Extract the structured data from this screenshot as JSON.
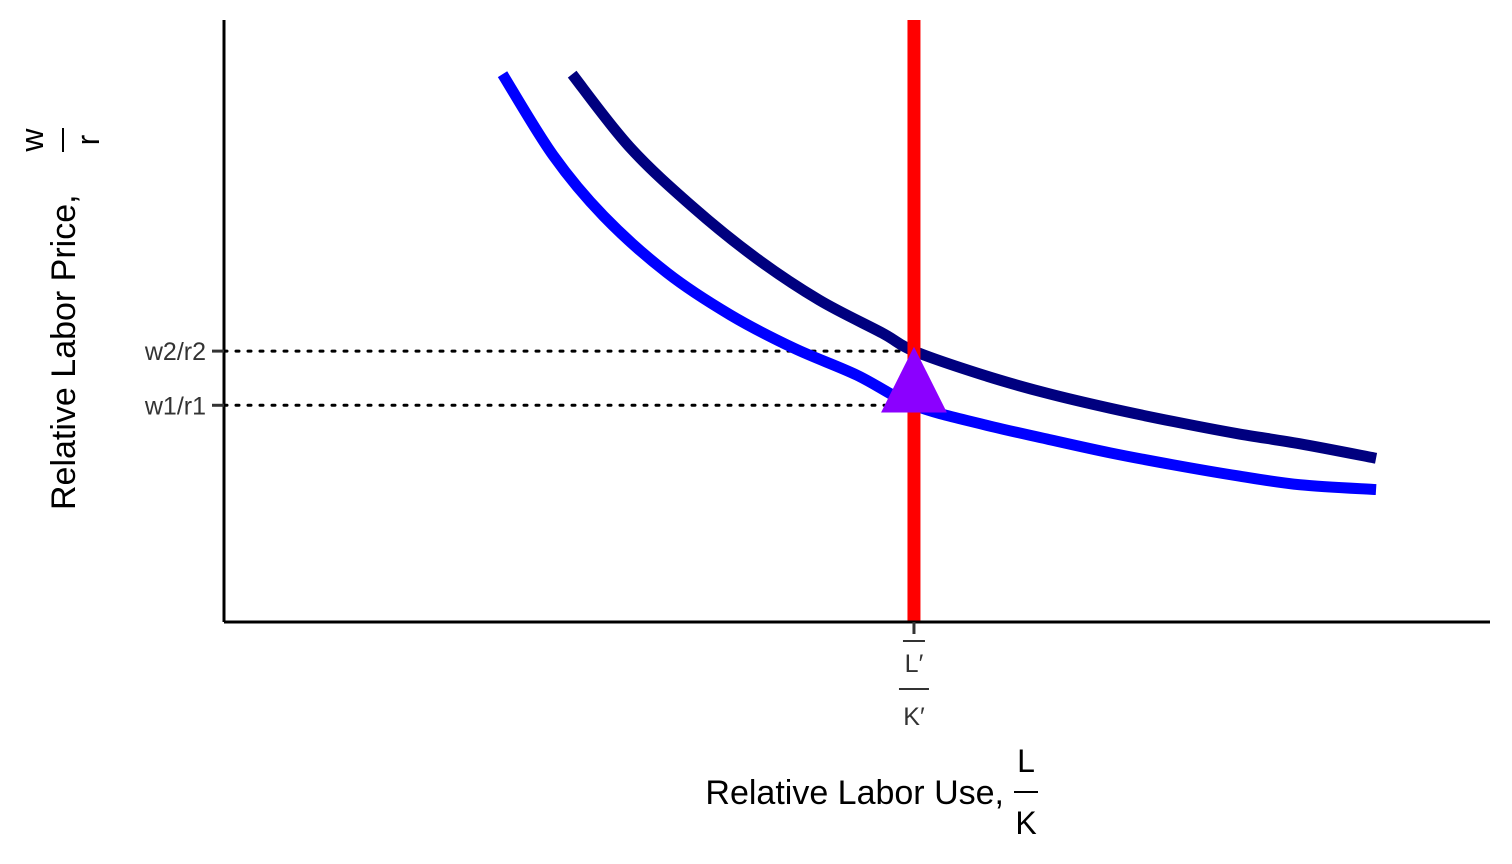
{
  "chart_data": {
    "type": "line",
    "xlabel": "Relative Labor Use,",
    "xlabel_frac": {
      "num": "L",
      "den": "K"
    },
    "ylabel": "Relative Labor Price,",
    "ylabel_frac": {
      "num": "w",
      "den": "r"
    },
    "xlim": [
      0,
      10
    ],
    "ylim": [
      0,
      10
    ],
    "grid": false,
    "x_ticks": [
      {
        "value": 5.45,
        "num": "L′",
        "den": "K′"
      }
    ],
    "y_ticks": [
      {
        "value": 3.6,
        "label": "w1/r1"
      },
      {
        "value": 4.5,
        "label": "w2/r2"
      }
    ],
    "series": [
      {
        "color": "#0000ff",
        "x": [
          2.2,
          2.6,
          3.0,
          3.5,
          4.0,
          4.5,
          5.0,
          5.45,
          6.0,
          6.5,
          7.0,
          7.5,
          8.0,
          8.5,
          9.1
        ],
        "y": [
          9.1,
          7.75,
          6.74,
          5.8,
          5.1,
          4.55,
          4.1,
          3.6,
          3.28,
          3.04,
          2.81,
          2.61,
          2.43,
          2.28,
          2.2
        ]
      },
      {
        "color": "#00007f",
        "x": [
          2.75,
          3.2,
          3.7,
          4.2,
          4.7,
          5.2,
          5.45,
          6.0,
          6.5,
          7.0,
          7.5,
          8.0,
          8.5,
          9.1
        ],
        "y": [
          9.1,
          7.9,
          6.9,
          6.05,
          5.35,
          4.8,
          4.5,
          4.1,
          3.8,
          3.55,
          3.33,
          3.13,
          2.96,
          2.72
        ]
      },
      {
        "color": "#ff0000",
        "x": [
          5.45,
          5.45
        ],
        "y": [
          0,
          10
        ]
      }
    ],
    "shift_arrow": {
      "color": "#8b00ff",
      "x": 5.45,
      "from": 3.6,
      "to": 4.5
    }
  }
}
